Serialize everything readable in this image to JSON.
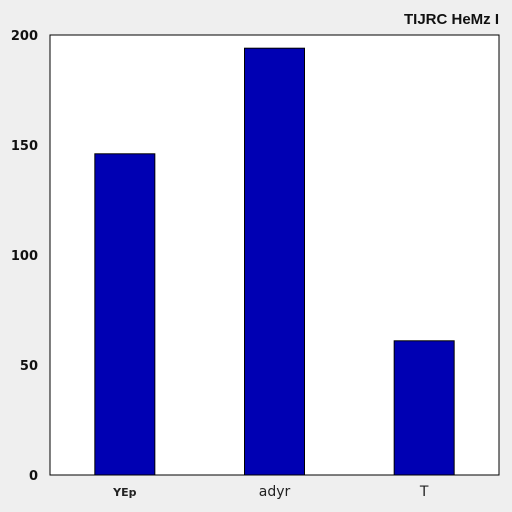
{
  "chart_data": {
    "type": "bar",
    "title": "TIJRC HeMz I",
    "xlabel": "",
    "ylabel": "",
    "categories": [
      "YEp",
      "adyr",
      "T"
    ],
    "values": [
      146,
      194,
      61
    ],
    "ylim": [
      0,
      200
    ],
    "yticks": [
      0,
      50,
      100,
      150,
      200
    ],
    "grid": false,
    "legend": "none",
    "colors": {
      "bar_fill": "#0000b3",
      "bar_stroke": "#000000",
      "plot_background": "#ffffff",
      "figure_background": "#efefef"
    }
  }
}
